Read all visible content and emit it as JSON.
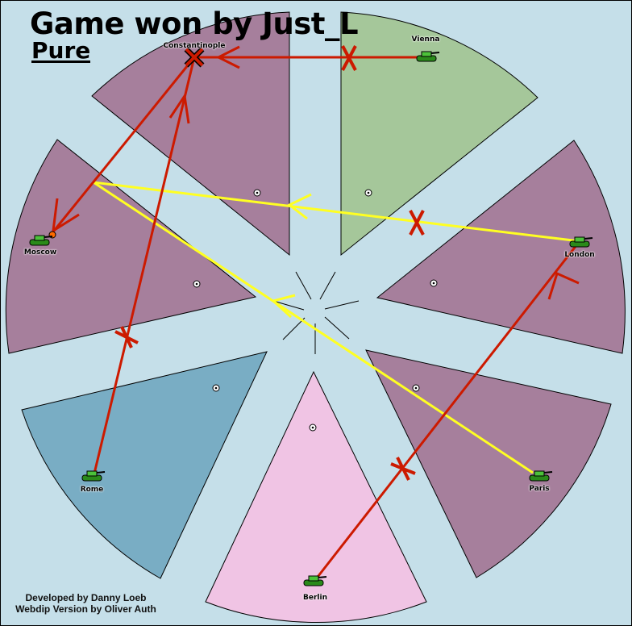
{
  "title": "Game won by Just_L",
  "variant": "Pure",
  "credits": {
    "line1": "Developed by Danny Loeb",
    "line2": "Webdip Version by Oliver Auth"
  },
  "colors": {
    "background": "#c5dfe9",
    "neutral": "#a67f9c",
    "vienna": "#a5c79a",
    "berlin": "#f0c4e4",
    "rome": "#79adc4",
    "move": "#cc1a00",
    "support": "#ffff22"
  },
  "territories": [
    {
      "name": "Constantinople",
      "owner_color": "#a67f9c",
      "unit": "army-tank-icon",
      "unit_state": "dislodged"
    },
    {
      "name": "Vienna",
      "owner_color": "#a5c79a",
      "unit": "army-tank-icon"
    },
    {
      "name": "London",
      "owner_color": "#a67f9c",
      "unit": "army-tank-icon"
    },
    {
      "name": "Paris",
      "owner_color": "#a67f9c",
      "unit": "army-tank-icon"
    },
    {
      "name": "Berlin",
      "owner_color": "#f0c4e4",
      "unit": "army-tank-icon"
    },
    {
      "name": "Rome",
      "owner_color": "#79adc4",
      "unit": "army-tank-icon"
    },
    {
      "name": "Moscow",
      "owner_color": "#a67f9c",
      "unit": "army-tank-icon",
      "unit_state": "attacked"
    }
  ]
}
